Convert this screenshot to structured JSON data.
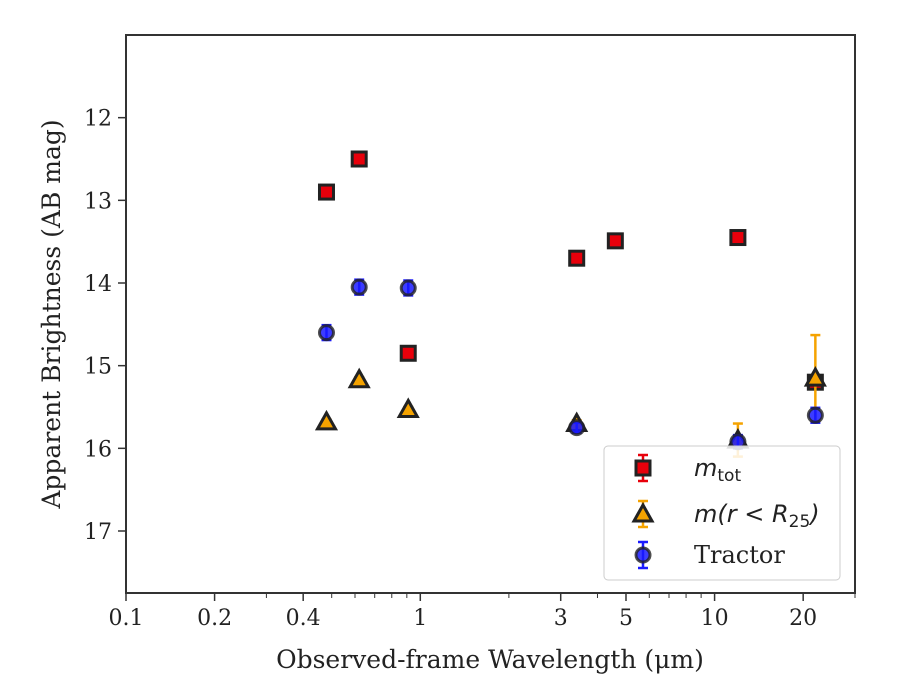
{
  "chart_data": {
    "type": "scatter",
    "title": "",
    "xlabel": "Observed-frame Wavelength (μm)",
    "ylabel": "Apparent Brightness (AB mag)",
    "xscale": "log",
    "xlim": [
      0.1,
      30
    ],
    "ylim": [
      17.75,
      11.0
    ],
    "y_inverted": true,
    "grid": false,
    "legend_position": "lower-right",
    "x_ticks": [
      0.1,
      0.2,
      0.4,
      1,
      3,
      5,
      10,
      20
    ],
    "x_tick_labels": [
      "0.1",
      "0.2",
      "0.4",
      "1",
      "3",
      "5",
      "10",
      "20"
    ],
    "y_ticks": [
      12,
      13,
      14,
      15,
      16,
      17
    ],
    "y_tick_labels": [
      "12",
      "13",
      "14",
      "15",
      "16",
      "17"
    ],
    "series": [
      {
        "legend_main": "m",
        "legend_sub": "tot",
        "marker": "square",
        "color": "#e8000b",
        "points": [
          {
            "x": 0.48,
            "y": 12.9,
            "err": 0.05
          },
          {
            "x": 0.62,
            "y": 12.5,
            "err": 0.05
          },
          {
            "x": 0.91,
            "y": 14.85,
            "err": 0.06
          },
          {
            "x": 3.4,
            "y": 13.7,
            "err": 0.07
          },
          {
            "x": 4.6,
            "y": 13.49,
            "err": 0.05
          },
          {
            "x": 12.0,
            "y": 13.45,
            "err": 0.07
          },
          {
            "x": 22.0,
            "y": 15.2,
            "err": 0.06
          }
        ]
      },
      {
        "legend_main": "m(r < R",
        "legend_sub": "25",
        "legend_tail": ")",
        "marker": "triangle",
        "color": "#f5a300",
        "points": [
          {
            "x": 0.48,
            "y": 15.68,
            "err": 0.03
          },
          {
            "x": 0.62,
            "y": 15.17,
            "err": 0.03
          },
          {
            "x": 0.91,
            "y": 15.53,
            "err": 0.03
          },
          {
            "x": 3.4,
            "y": 15.7,
            "err": 0.04
          },
          {
            "x": 12.0,
            "y": 15.9,
            "err": 0.2
          },
          {
            "x": 22.0,
            "y": 15.15,
            "err": 0.52
          }
        ]
      },
      {
        "name": "Tractor",
        "marker": "circle",
        "color": "#1a1aff",
        "points": [
          {
            "x": 0.48,
            "y": 14.6,
            "err": 0.09
          },
          {
            "x": 0.62,
            "y": 14.05,
            "err": 0.09
          },
          {
            "x": 0.91,
            "y": 14.06,
            "err": 0.09
          },
          {
            "x": 3.4,
            "y": 15.75,
            "err": 0.06
          },
          {
            "x": 12.0,
            "y": 15.92,
            "err": 0.08
          },
          {
            "x": 22.0,
            "y": 15.6,
            "err": 0.09
          }
        ]
      }
    ]
  }
}
